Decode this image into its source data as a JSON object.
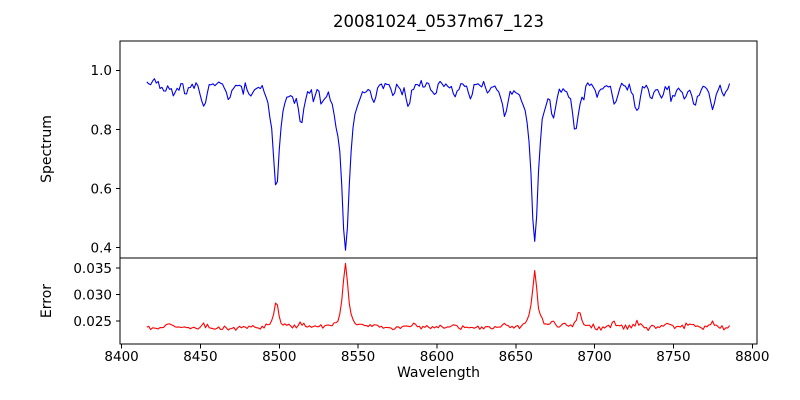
{
  "chart_data": {
    "type": "line",
    "title": "20081024_0537m67_123",
    "xlabel": "Wavelength",
    "x_ticks": [
      8400,
      8450,
      8500,
      8550,
      8600,
      8650,
      8700,
      8750,
      8800
    ],
    "xlim": [
      8399,
      8803
    ],
    "x_data_range": [
      8416,
      8786
    ],
    "sample_step": 1.2,
    "noise_seed": 1234567,
    "grid": false,
    "legend": "none",
    "panels": [
      {
        "name": "spectrum",
        "ylabel": "Spectrum",
        "color": "#0000ee",
        "y_ticks": [
          0.4,
          0.6,
          0.8,
          1.0
        ],
        "y_tick_labels": [
          "0.4",
          "0.6",
          "0.8",
          "1.0"
        ],
        "ylim": [
          0.365,
          1.1
        ],
        "continuum": 0.968,
        "noise_amplitude": 0.018,
        "spike_probability": 0.055,
        "spike_depth": 0.05,
        "absorption_lines": [
          [
            8427,
            0.04,
            1.6
          ],
          [
            8433,
            0.05,
            1.8
          ],
          [
            8441,
            0.04,
            1.6
          ],
          [
            8452,
            0.09,
            2.0
          ],
          [
            8468,
            0.06,
            1.8
          ],
          [
            8482,
            0.05,
            1.6
          ],
          [
            8498,
            0.36,
            2.6
          ],
          [
            8514,
            0.14,
            2.2
          ],
          [
            8527,
            0.05,
            1.6
          ],
          [
            8536,
            0.04,
            1.5
          ],
          [
            8542,
            0.575,
            3.0
          ],
          [
            8560,
            0.05,
            1.6
          ],
          [
            8572,
            0.04,
            1.5
          ],
          [
            8582,
            0.08,
            1.9
          ],
          [
            8598,
            0.06,
            1.7
          ],
          [
            8611,
            0.05,
            1.6
          ],
          [
            8621,
            0.06,
            1.7
          ],
          [
            8632,
            0.04,
            1.5
          ],
          [
            8643,
            0.1,
            2.1
          ],
          [
            8662,
            0.532,
            2.8
          ],
          [
            8674,
            0.1,
            1.8
          ],
          [
            8688,
            0.16,
            2.2
          ],
          [
            8702,
            0.05,
            1.6
          ],
          [
            8713,
            0.08,
            1.8
          ],
          [
            8727,
            0.11,
            2.0
          ],
          [
            8736,
            0.05,
            1.5
          ],
          [
            8742,
            0.06,
            1.6
          ],
          [
            8750,
            0.05,
            1.5
          ],
          [
            8757,
            0.06,
            1.6
          ],
          [
            8764,
            0.09,
            1.8
          ],
          [
            8775,
            0.1,
            1.8
          ],
          [
            8782,
            0.05,
            1.5
          ]
        ]
      },
      {
        "name": "error",
        "ylabel": "Error",
        "color": "#ff0000",
        "y_ticks": [
          0.025,
          0.03,
          0.035
        ],
        "y_tick_labels": [
          "0.025",
          "0.030",
          "0.035"
        ],
        "ylim": [
          0.0207,
          0.0369
        ],
        "baseline": 0.0237,
        "noise_amplitude": 0.0005,
        "noise_amplitude_right": 0.0008,
        "right_start": 8680,
        "emission_peaks": [
          [
            8430,
            0.0008,
            2.0
          ],
          [
            8452,
            0.0006,
            2.0
          ],
          [
            8498,
            0.0053,
            1.6
          ],
          [
            8514,
            0.0008,
            1.8
          ],
          [
            8542,
            0.0121,
            1.9
          ],
          [
            8560,
            0.0005,
            1.8
          ],
          [
            8585,
            0.0007,
            2.0
          ],
          [
            8610,
            0.0005,
            2.0
          ],
          [
            8643,
            0.0006,
            1.8
          ],
          [
            8662,
            0.0108,
            1.8
          ],
          [
            8674,
            0.0008,
            1.8
          ],
          [
            8690,
            0.0028,
            2.0
          ],
          [
            8713,
            0.0007,
            1.8
          ],
          [
            8727,
            0.0011,
            1.9
          ],
          [
            8745,
            0.0009,
            1.8
          ],
          [
            8762,
            0.0008,
            1.8
          ],
          [
            8775,
            0.0007,
            1.8
          ]
        ]
      }
    ]
  }
}
